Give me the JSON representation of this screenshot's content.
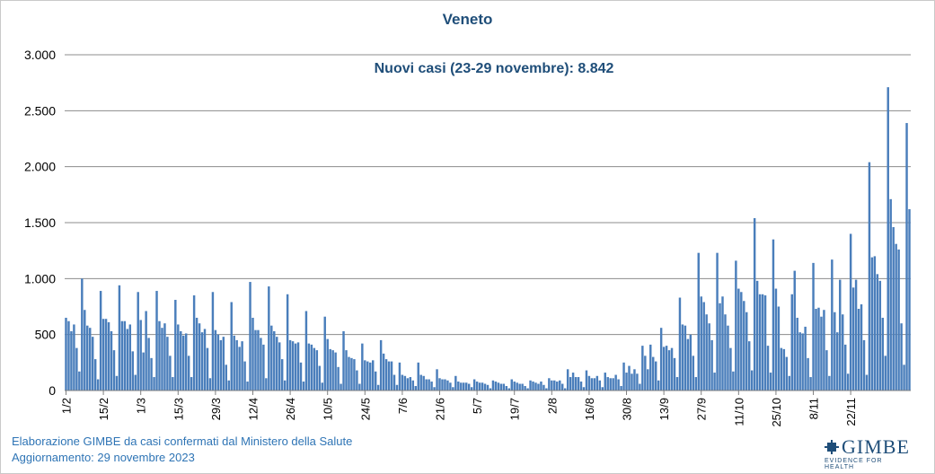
{
  "chart_data": {
    "type": "bar",
    "title": "Veneto",
    "annotation": "Nuovi casi (23-29 novembre): 8.842",
    "xlabel": "",
    "ylabel": "",
    "ylim": [
      0,
      3000
    ],
    "y_ticks": [
      0,
      500,
      1000,
      1500,
      2000,
      2500,
      3000
    ],
    "y_tick_labels": [
      "0",
      "500",
      "1.000",
      "1.500",
      "2.000",
      "2.500",
      "3.000"
    ],
    "x_tick_labels": [
      "1/2",
      "15/2",
      "1/3",
      "15/3",
      "29/3",
      "12/4",
      "26/4",
      "10/5",
      "24/5",
      "7/6",
      "21/6",
      "5/7",
      "19/7",
      "2/8",
      "16/8",
      "30/8",
      "13/9",
      "27/9",
      "11/10",
      "25/10",
      "8/11",
      "22/11"
    ],
    "grid": true,
    "bar_color": "#4a7ebb",
    "start_date": "2023-02-01",
    "end_date": "2023-11-29",
    "values": [
      650,
      620,
      530,
      590,
      380,
      170,
      1000,
      720,
      580,
      560,
      480,
      280,
      100,
      890,
      640,
      640,
      610,
      530,
      360,
      130,
      940,
      620,
      620,
      550,
      590,
      350,
      140,
      880,
      630,
      340,
      710,
      470,
      290,
      120,
      890,
      620,
      560,
      600,
      480,
      310,
      120,
      810,
      590,
      530,
      490,
      510,
      310,
      120,
      850,
      650,
      600,
      520,
      550,
      380,
      110,
      880,
      540,
      500,
      450,
      480,
      230,
      90,
      790,
      490,
      450,
      390,
      440,
      260,
      80,
      970,
      650,
      540,
      540,
      470,
      410,
      110,
      930,
      580,
      530,
      480,
      430,
      280,
      90,
      860,
      450,
      440,
      420,
      430,
      250,
      80,
      710,
      420,
      410,
      380,
      360,
      220,
      70,
      660,
      460,
      370,
      360,
      340,
      210,
      60,
      530,
      360,
      300,
      290,
      280,
      180,
      60,
      420,
      270,
      260,
      250,
      270,
      170,
      50,
      450,
      330,
      280,
      260,
      260,
      140,
      50,
      250,
      140,
      130,
      110,
      120,
      90,
      40,
      250,
      140,
      130,
      100,
      100,
      80,
      30,
      190,
      110,
      100,
      100,
      90,
      70,
      30,
      130,
      80,
      70,
      70,
      70,
      60,
      30,
      100,
      80,
      70,
      70,
      60,
      50,
      20,
      90,
      80,
      70,
      60,
      60,
      40,
      20,
      100,
      80,
      70,
      60,
      60,
      40,
      20,
      90,
      80,
      70,
      60,
      80,
      50,
      20,
      110,
      90,
      90,
      80,
      90,
      60,
      20,
      190,
      120,
      160,
      120,
      120,
      80,
      30,
      180,
      130,
      110,
      110,
      130,
      90,
      30,
      160,
      120,
      110,
      110,
      140,
      100,
      40,
      250,
      160,
      220,
      150,
      190,
      150,
      60,
      400,
      310,
      190,
      410,
      300,
      260,
      90,
      560,
      390,
      400,
      360,
      380,
      290,
      120,
      830,
      590,
      580,
      460,
      500,
      310,
      120,
      1230,
      840,
      790,
      680,
      600,
      450,
      160,
      1230,
      780,
      840,
      680,
      580,
      380,
      170,
      1160,
      910,
      880,
      800,
      700,
      440,
      180,
      1540,
      980,
      860,
      860,
      850,
      400,
      160,
      1350,
      910,
      750,
      380,
      370,
      300,
      130,
      860,
      1070,
      650,
      520,
      510,
      570,
      290,
      120,
      1140,
      730,
      740,
      660,
      720,
      360,
      130,
      1170,
      700,
      520,
      990,
      680,
      410,
      150,
      1400,
      920,
      990,
      730,
      770,
      450,
      140,
      2040,
      1190,
      1200,
      1040,
      980,
      650,
      310,
      2710,
      1710,
      1460,
      1310,
      1260,
      600,
      230,
      2390,
      1620
    ]
  },
  "footer": {
    "source_line": "Elaborazione GIMBE da casi confermati dal Ministero della Salute",
    "updated_line": "Aggiornamento: 29 novembre 2023"
  },
  "logo": {
    "name": "GIMBE",
    "tagline": "EVIDENCE FOR HEALTH",
    "color": "#1f4e79"
  }
}
